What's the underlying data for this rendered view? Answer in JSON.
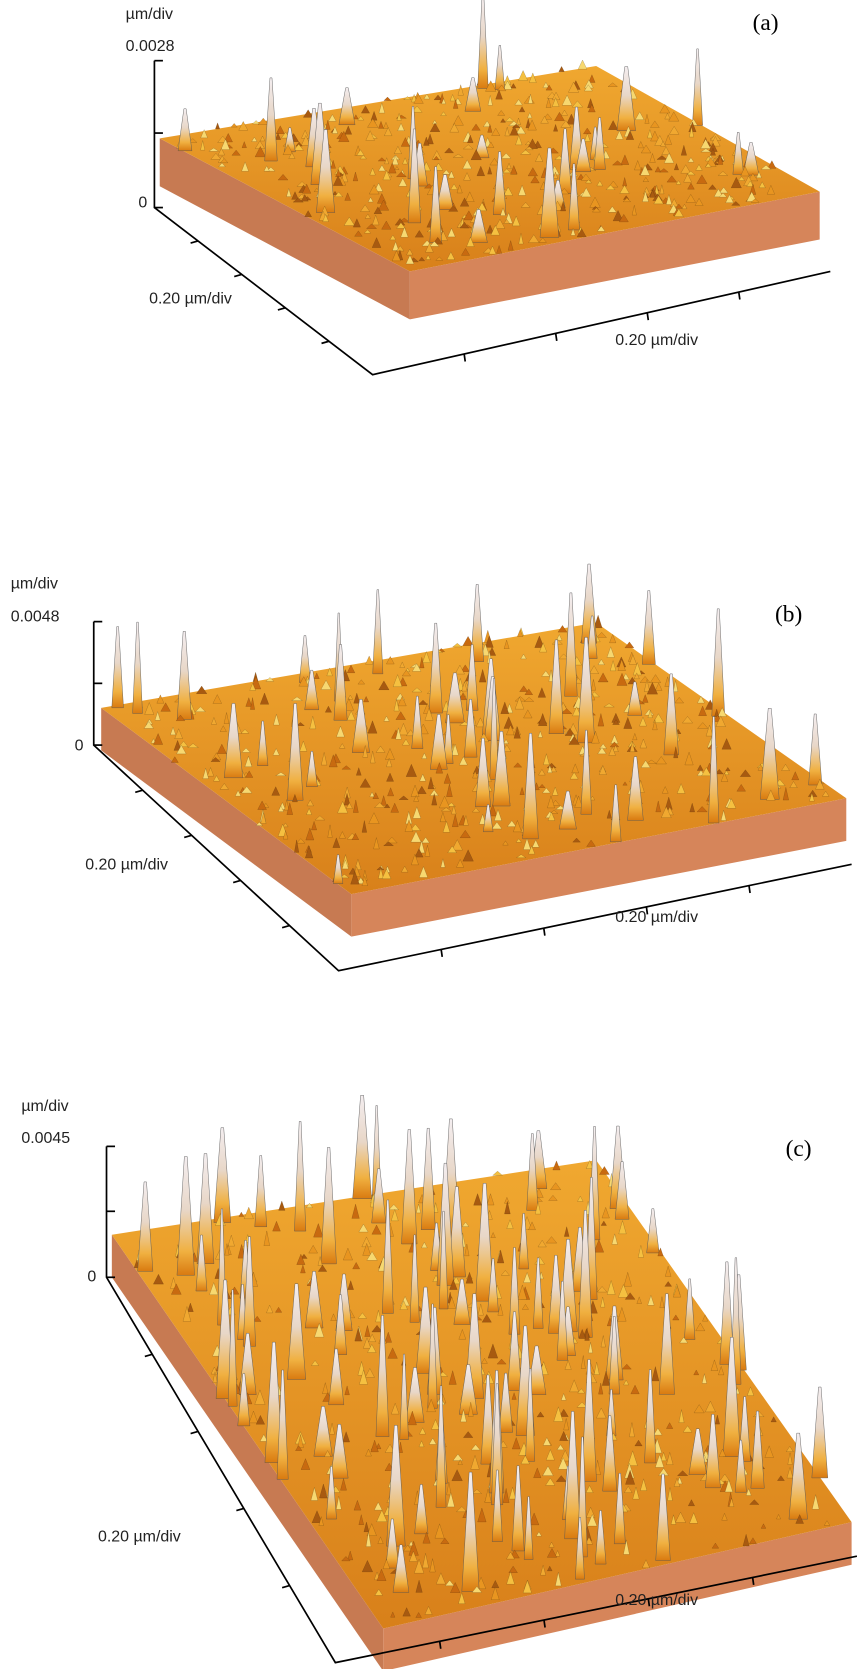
{
  "panels": [
    {
      "label": "(a)",
      "z_unit": "µm/div",
      "z_max": "0.0028",
      "z_zero": "0",
      "x_scale": "0.20 µm/div",
      "y_scale": "0.20 µm/div"
    },
    {
      "label": "(b)",
      "z_unit": "µm/div",
      "z_max": "0.0048",
      "z_zero": "0",
      "x_scale": "0.20 µm/div",
      "y_scale": "0.20 µm/div"
    },
    {
      "label": "(c)",
      "z_unit": "µm/div",
      "z_max": "0.0045",
      "z_zero": "0",
      "x_scale": "0.20 µm/div",
      "y_scale": "0.20 µm/div"
    }
  ]
}
